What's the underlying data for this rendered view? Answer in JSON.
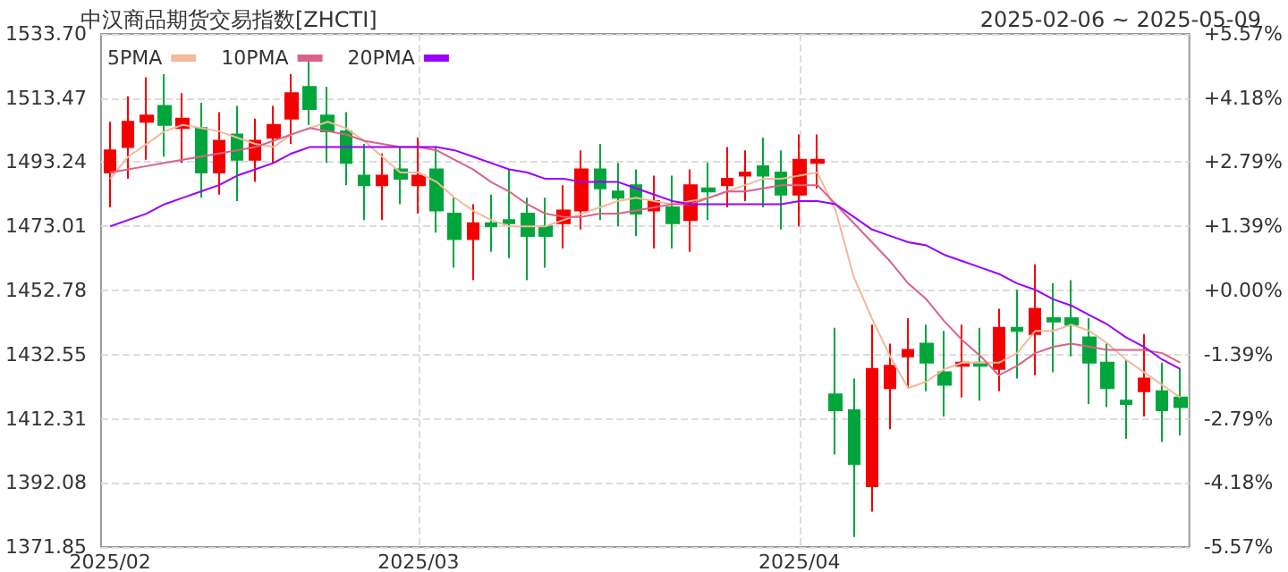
{
  "chart_data": {
    "type": "candlestick",
    "title": "中汉商品期货交易指数[ZHCTI]",
    "subtitle": "2025-02-06 ~ 2025-05-09",
    "categories": [
      "2025/02",
      null,
      null,
      null,
      null,
      null,
      null,
      null,
      null,
      null,
      null,
      null,
      null,
      null,
      null,
      null,
      null,
      "2025/03",
      null,
      null,
      null,
      null,
      null,
      null,
      null,
      null,
      null,
      null,
      null,
      null,
      null,
      null,
      null,
      null,
      null,
      null,
      null,
      null,
      "2025/04",
      null,
      null,
      null,
      null,
      null,
      null,
      null,
      null,
      null,
      null,
      null,
      null,
      null,
      null,
      null,
      null,
      null,
      null,
      null,
      null,
      null
    ],
    "colors": [
      "#f50000",
      "#f50000",
      "#f50000",
      "#00a63c",
      "#f50000",
      "#00a63c",
      "#f50000",
      "#00a63c",
      "#f50000",
      "#f50000",
      "#f50000",
      "#00a63c",
      "#00a63c",
      "#00a63c",
      "#00a63c",
      "#f50000",
      "#00a63c",
      "#f50000",
      "#00a63c",
      "#00a63c",
      "#f50000",
      "#00a63c",
      "#00a63c",
      "#00a63c",
      "#00a63c",
      "#f50000",
      "#f50000",
      "#00a63c",
      "#00a63c",
      "#00a63c",
      "#f50000",
      "#00a63c",
      "#f50000",
      "#00a63c",
      "#f50000",
      "#f50000",
      "#00a63c",
      "#00a63c",
      "#f50000",
      "#f50000",
      "#00a63c",
      "#00a63c",
      "#f50000",
      "#f50000",
      "#f50000",
      "#00a63c",
      "#00a63c",
      "#f50000",
      "#00a63c",
      "#f50000",
      "#00a63c",
      "#f50000",
      "#00a63c",
      "#00a63c",
      "#00a63c",
      "#00a63c",
      "#00a63c",
      "#f50000",
      "#00a63c",
      "#00a63c"
    ],
    "ohlc": [
      [
        1490,
        1506,
        1479,
        1497
      ],
      [
        1498,
        1514,
        1488,
        1506
      ],
      [
        1506,
        1520,
        1494,
        1508
      ],
      [
        1511,
        1521,
        1495,
        1505
      ],
      [
        1504,
        1515,
        1493,
        1507
      ],
      [
        1504,
        1512,
        1482,
        1490
      ],
      [
        1490,
        1509,
        1483,
        1500
      ],
      [
        1502,
        1511,
        1481,
        1494
      ],
      [
        1494,
        1507,
        1487,
        1500
      ],
      [
        1501,
        1511,
        1493,
        1505
      ],
      [
        1507,
        1521,
        1499,
        1515
      ],
      [
        1517,
        1526,
        1505,
        1510
      ],
      [
        1508,
        1517,
        1493,
        1503
      ],
      [
        1503,
        1509,
        1486,
        1493
      ],
      [
        1489,
        1499,
        1475,
        1486
      ],
      [
        1486,
        1496,
        1475,
        1489
      ],
      [
        1491,
        1498,
        1480,
        1488
      ],
      [
        1486,
        1501,
        1477,
        1489
      ],
      [
        1491,
        1498,
        1471,
        1478
      ],
      [
        1477,
        1482,
        1460,
        1469
      ],
      [
        1469,
        1480,
        1456,
        1474
      ],
      [
        1474,
        1483,
        1465,
        1473
      ],
      [
        1475,
        1491,
        1463,
        1474
      ],
      [
        1477,
        1482,
        1456,
        1470
      ],
      [
        1473,
        1482,
        1460,
        1470
      ],
      [
        1474,
        1486,
        1466,
        1478
      ],
      [
        1478,
        1497,
        1472,
        1491
      ],
      [
        1491,
        1499,
        1475,
        1485
      ],
      [
        1484,
        1493,
        1473,
        1482
      ],
      [
        1486,
        1491,
        1470,
        1477
      ],
      [
        1478,
        1489,
        1466,
        1481
      ],
      [
        1479,
        1489,
        1466,
        1474
      ],
      [
        1475,
        1491,
        1465,
        1486
      ],
      [
        1485,
        1493,
        1475,
        1484
      ],
      [
        1486,
        1498,
        1479,
        1488
      ],
      [
        1489,
        1497,
        1481,
        1490
      ],
      [
        1492,
        1501,
        1479,
        1489
      ],
      [
        1490,
        1497,
        1472,
        1483
      ],
      [
        1483,
        1502,
        1473,
        1494
      ],
      [
        1493,
        1502,
        1485,
        1494
      ],
      [
        1420,
        1441,
        1401,
        1415
      ],
      [
        1415,
        1425,
        1375,
        1398
      ],
      [
        1391,
        1442,
        1383,
        1428
      ],
      [
        1422,
        1436,
        1409,
        1429
      ],
      [
        1432,
        1444,
        1422,
        1434
      ],
      [
        1436,
        1442,
        1421,
        1430
      ],
      [
        1427,
        1440,
        1413,
        1423
      ],
      [
        1429,
        1442,
        1419,
        1430
      ],
      [
        1430,
        1441,
        1418,
        1429
      ],
      [
        1428,
        1447,
        1421,
        1441
      ],
      [
        1441,
        1453,
        1425,
        1440
      ],
      [
        1439,
        1461,
        1426,
        1447
      ],
      [
        1444,
        1455,
        1427,
        1443
      ],
      [
        1444,
        1456,
        1432,
        1442
      ],
      [
        1438,
        1444,
        1417,
        1430
      ],
      [
        1430,
        1436,
        1416,
        1422
      ],
      [
        1418,
        1431,
        1406,
        1417
      ],
      [
        1421,
        1439,
        1413,
        1425
      ],
      [
        1421,
        1430,
        1405,
        1415
      ],
      [
        1419,
        1428,
        1407,
        1416
      ]
    ],
    "series": [
      {
        "type": "line",
        "name": "5PMA",
        "color": "#f4b89a",
        "values": [
          1488,
          1495,
          1499,
          1503,
          1505,
          1504,
          1503,
          1501,
          1499,
          1498,
          1502,
          1504,
          1506,
          1504,
          1500,
          1495,
          1490,
          1490,
          1487,
          1482,
          1478,
          1475,
          1473,
          1473,
          1473,
          1475,
          1477,
          1479,
          1481,
          1482,
          1481,
          1480,
          1481,
          1482,
          1484,
          1486,
          1488,
          1488,
          1489,
          1490,
          1478,
          1457,
          1444,
          1432,
          1422,
          1424,
          1428,
          1430,
          1430,
          1430,
          1433,
          1440,
          1440,
          1442,
          1440,
          1436,
          1431,
          1427,
          1423,
          1419
        ]
      },
      {
        "type": "line",
        "name": "10PMA",
        "color": "#d9628a",
        "values": [
          1490,
          1491,
          1492,
          1493,
          1494,
          1495,
          1496,
          1497,
          1498,
          1500,
          1502,
          1504,
          1503,
          1502,
          1500,
          1499,
          1498,
          1498,
          1497,
          1494,
          1491,
          1487,
          1484,
          1480,
          1477,
          1476,
          1476,
          1477,
          1477,
          1478,
          1479,
          1480,
          1480,
          1482,
          1484,
          1484,
          1485,
          1486,
          1486,
          1486,
          1480,
          1474,
          1468,
          1462,
          1455,
          1450,
          1443,
          1437,
          1432,
          1426,
          1429,
          1433,
          1435,
          1436,
          1435,
          1434,
          1434,
          1434,
          1433,
          1430
        ]
      },
      {
        "type": "line",
        "name": "20PMA",
        "color": "#9900ff",
        "values": [
          1473,
          1475,
          1477,
          1480,
          1482,
          1484,
          1486,
          1489,
          1491,
          1493,
          1496,
          1498,
          1498,
          1498,
          1498,
          1498,
          1498,
          1498,
          1498,
          1497,
          1495,
          1493,
          1491,
          1490,
          1488,
          1488,
          1487,
          1487,
          1487,
          1485,
          1483,
          1481,
          1480,
          1480,
          1480,
          1480,
          1480,
          1480,
          1481,
          1481,
          1480,
          1476,
          1472,
          1470,
          1468,
          1467,
          1464,
          1462,
          1460,
          1458,
          1455,
          1453,
          1450,
          1448,
          1445,
          1442,
          1438,
          1435,
          1431,
          1428
        ]
      }
    ],
    "ylim": [
      1371.85,
      1533.7
    ],
    "yticks": [
      1371.85,
      1392.08,
      1412.31,
      1432.55,
      1452.78,
      1473.01,
      1493.24,
      1513.47,
      {
        "value": 1533.7,
        "label": "1533.70"
      }
    ],
    "y2lim": [
      -5.57,
      5.57
    ],
    "y2ticks": [
      {
        "value": -5.57,
        "label": "-5.57%"
      },
      {
        "value": -4.18,
        "label": "-4.18%"
      },
      {
        "value": -2.79,
        "label": "-2.79%"
      },
      {
        "value": -1.39,
        "label": "-1.39%"
      },
      {
        "value": 0,
        "label": "+0.00%"
      },
      {
        "value": 1.39,
        "label": "+1.39%"
      },
      {
        "value": 2.79,
        "label": "+2.79%"
      },
      {
        "value": 4.18,
        "label": "+4.18%"
      },
      {
        "value": 5.57,
        "label": "+5.57%"
      }
    ],
    "grid": true,
    "legend": "top left",
    "line_style": "solid"
  }
}
